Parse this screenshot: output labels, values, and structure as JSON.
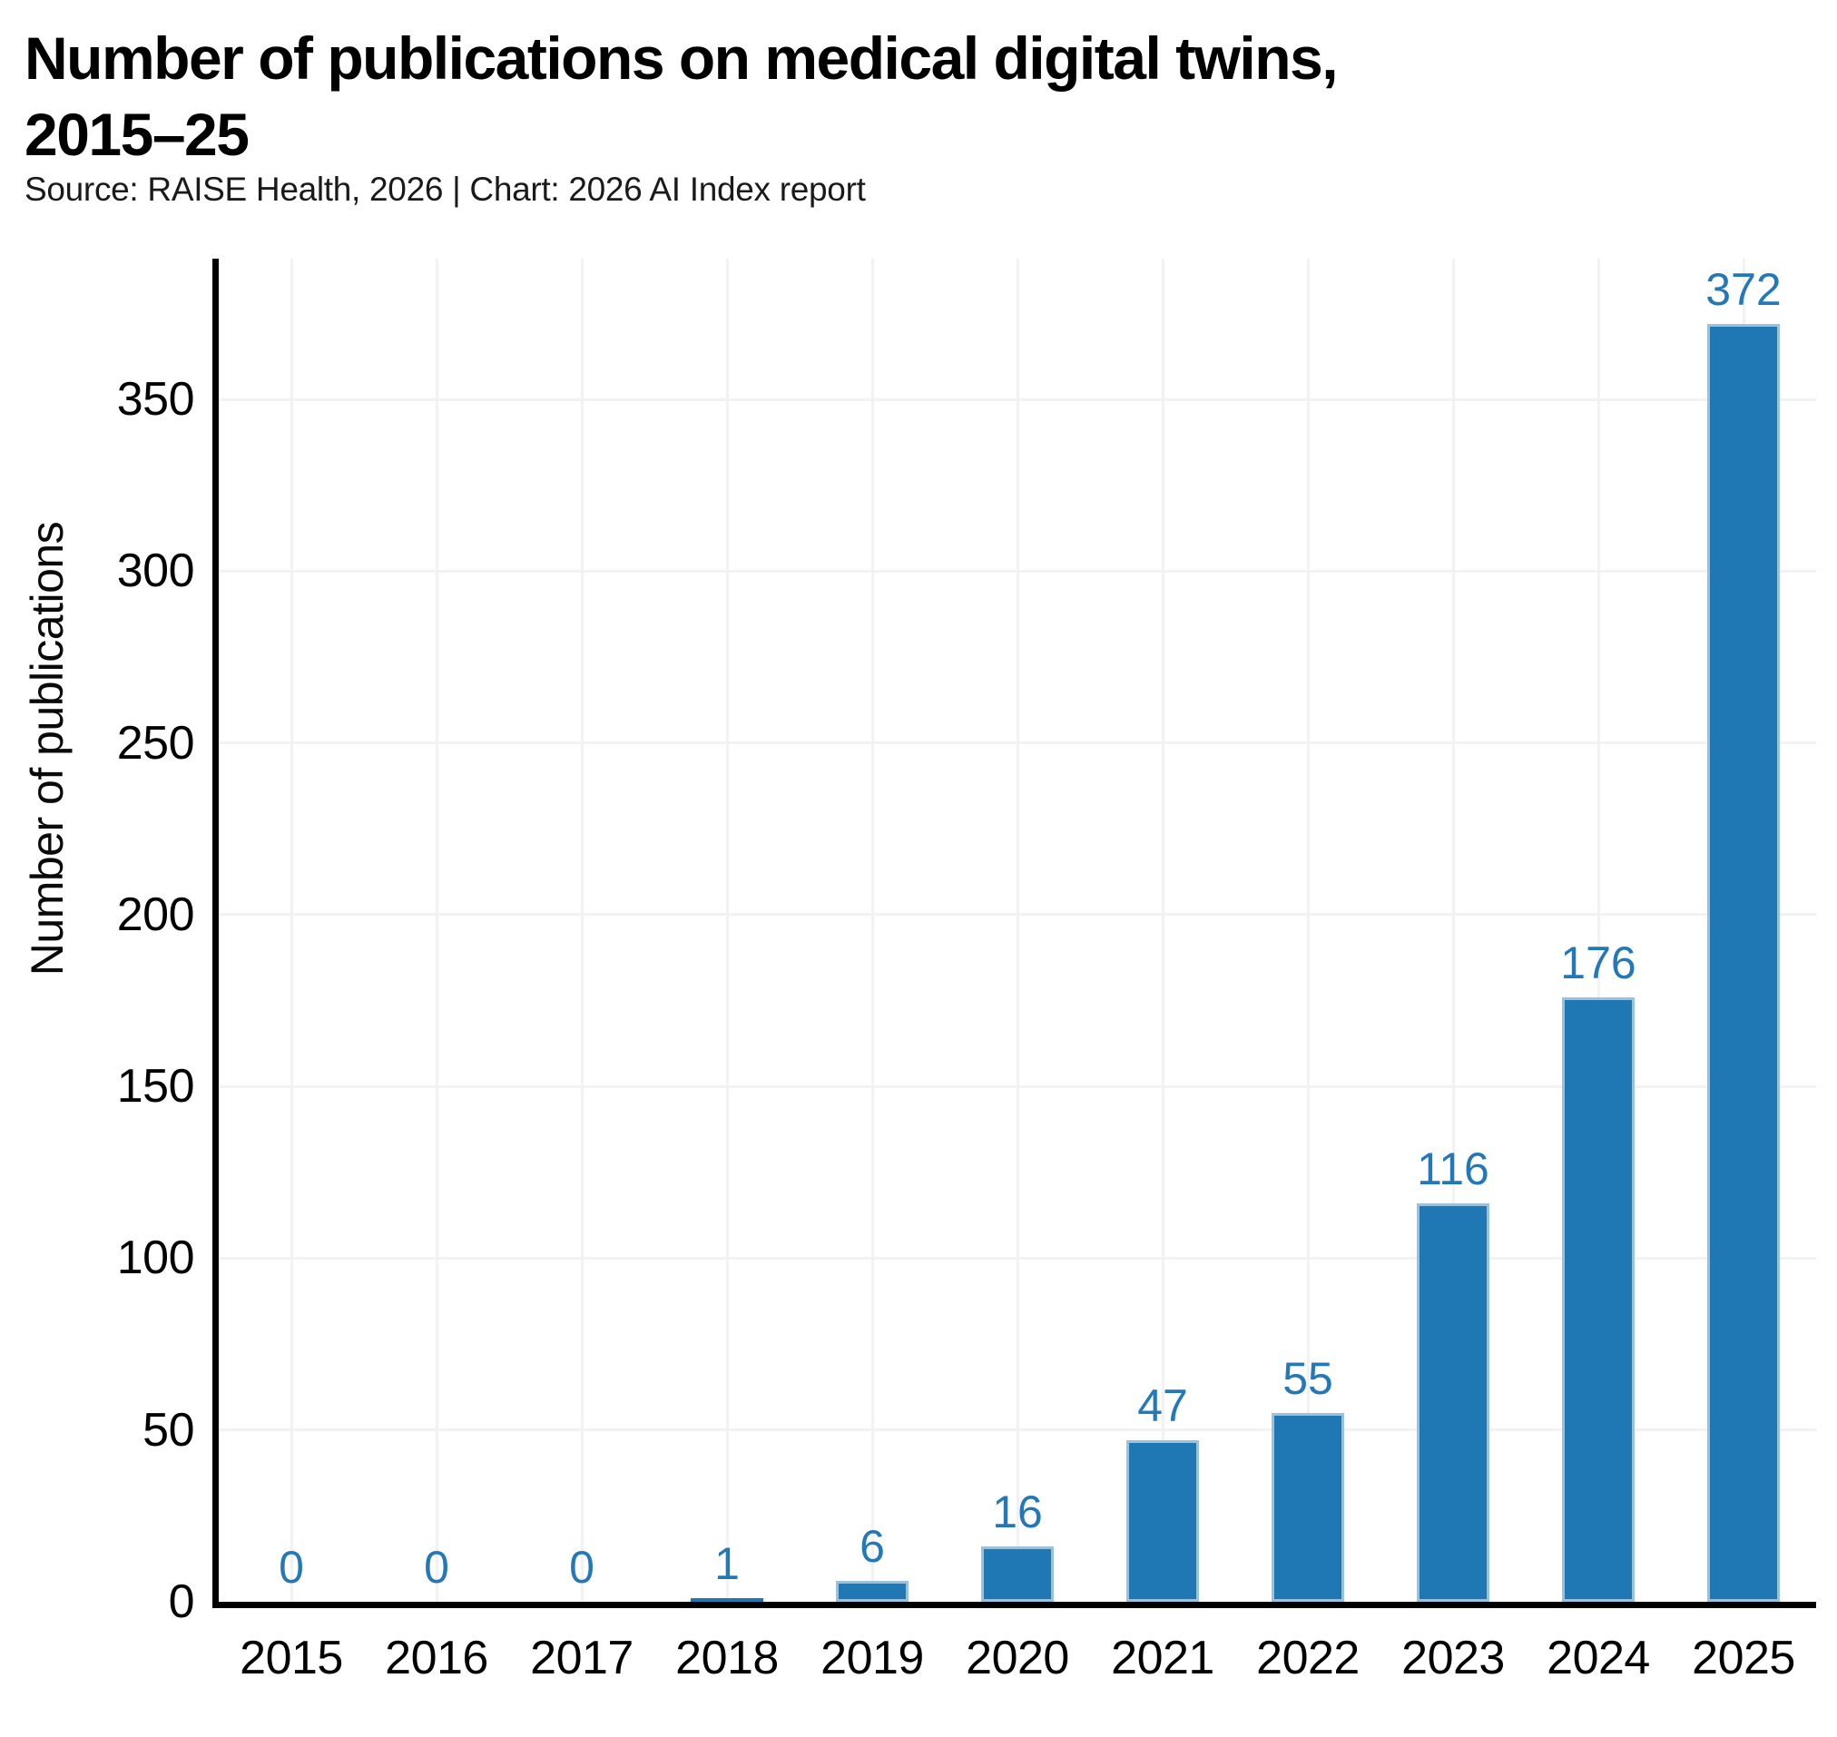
{
  "header": {
    "title_lines": [
      "Number of publications on medical digital twins,",
      "2015–25"
    ],
    "subtitle": "Source: RAISE Health, 2026 | Chart: 2026 AI Index report"
  },
  "chart_data": {
    "type": "bar",
    "title": "Number of publications on medical digital twins, 2015–25",
    "source": "Source: RAISE Health, 2026 | Chart: 2026 AI Index report",
    "categories": [
      "2015",
      "2016",
      "2017",
      "2018",
      "2019",
      "2020",
      "2021",
      "2022",
      "2023",
      "2024",
      "2025"
    ],
    "values": [
      0,
      0,
      0,
      1,
      6,
      16,
      47,
      55,
      116,
      176,
      372
    ],
    "xlabel": "",
    "ylabel": "Number of publications",
    "ylim": [
      0,
      391
    ],
    "yticks": [
      0,
      50,
      100,
      150,
      200,
      250,
      300,
      350
    ],
    "grid": true,
    "legend": "none",
    "bar_color": "#1F78B4",
    "value_label_color": "#2478B8",
    "gridline_color": "#F2F2F2",
    "axis_color": "#000000"
  }
}
